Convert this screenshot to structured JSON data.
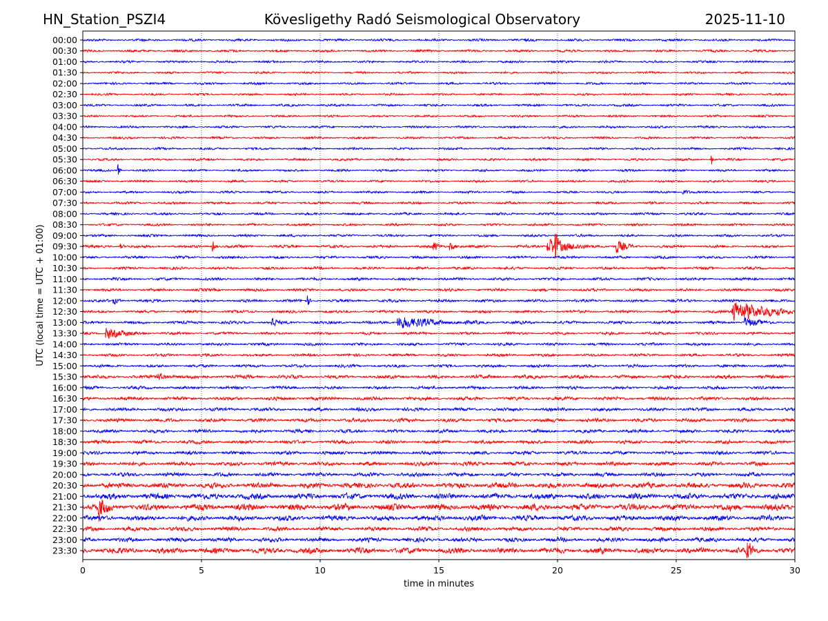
{
  "chart_data": {
    "type": "line",
    "title_left": "HN_Station_PSZI4",
    "title_center": "Kövesligethy Radó Seismological Observatory",
    "title_right": "2025-11-10",
    "xlabel": "time in minutes",
    "ylabel": "UTC (local time = UTC + 01:00)",
    "xlim": [
      0,
      30
    ],
    "xticks": [
      "0",
      "5",
      "10",
      "15",
      "20",
      "25",
      "30"
    ],
    "grid": "vertical dotted at 5-minute ticks",
    "trace_colors": [
      "#0000ff",
      "#ff0000"
    ],
    "traces": [
      "00:00",
      "00:30",
      "01:00",
      "01:30",
      "02:00",
      "02:30",
      "03:00",
      "03:30",
      "04:00",
      "04:30",
      "05:00",
      "05:30",
      "06:00",
      "06:30",
      "07:00",
      "07:30",
      "08:00",
      "08:30",
      "09:00",
      "09:30",
      "10:00",
      "10:30",
      "11:00",
      "11:30",
      "12:00",
      "12:30",
      "13:00",
      "13:30",
      "14:00",
      "14:30",
      "15:00",
      "15:30",
      "16:00",
      "16:30",
      "17:00",
      "17:30",
      "18:00",
      "18:30",
      "19:00",
      "19:30",
      "20:00",
      "20:30",
      "21:00",
      "21:30",
      "22:00",
      "22:30",
      "23:00",
      "23:30"
    ],
    "noise_level": [
      1.6,
      1.6,
      1.5,
      1.4,
      1.5,
      1.4,
      1.5,
      1.4,
      1.5,
      1.5,
      1.5,
      1.5,
      1.5,
      1.5,
      1.5,
      1.6,
      1.6,
      1.6,
      1.6,
      1.8,
      1.7,
      1.7,
      1.8,
      1.8,
      1.8,
      1.8,
      1.9,
      1.8,
      1.8,
      1.8,
      1.9,
      2.3,
      2.0,
      2.3,
      2.2,
      2.4,
      2.2,
      2.3,
      2.3,
      2.6,
      2.5,
      3.6,
      3.8,
      4.2,
      3.4,
      2.8,
      2.8,
      3.8
    ],
    "events": [
      {
        "trace": "05:30",
        "minute": 26.5,
        "amplitude": 8,
        "duration": 0.1
      },
      {
        "trace": "06:00",
        "minute": 1.5,
        "amplitude": 9,
        "duration": 0.1
      },
      {
        "trace": "07:00",
        "minute": 25.3,
        "amplitude": 3,
        "duration": 0.5
      },
      {
        "trace": "09:30",
        "minute": 1.6,
        "amplitude": 3,
        "duration": 0.2
      },
      {
        "trace": "09:30",
        "minute": 5.5,
        "amplitude": 6,
        "duration": 0.15
      },
      {
        "trace": "09:30",
        "minute": 14.8,
        "amplitude": 6,
        "duration": 0.3
      },
      {
        "trace": "09:30",
        "minute": 15.5,
        "amplitude": 5,
        "duration": 0.4
      },
      {
        "trace": "09:30",
        "minute": 19.6,
        "amplitude": 10,
        "duration": 1.6
      },
      {
        "trace": "09:30",
        "minute": 19.9,
        "amplitude": 20,
        "duration": 0.15
      },
      {
        "trace": "09:30",
        "minute": 22.5,
        "amplitude": 8,
        "duration": 0.6
      },
      {
        "trace": "12:00",
        "minute": 1.3,
        "amplitude": 4,
        "duration": 0.3
      },
      {
        "trace": "12:00",
        "minute": 9.5,
        "amplitude": 6,
        "duration": 0.1
      },
      {
        "trace": "12:30",
        "minute": 27.4,
        "amplitude": 14,
        "duration": 2.5
      },
      {
        "trace": "13:00",
        "minute": 8.0,
        "amplitude": 8,
        "duration": 0.2
      },
      {
        "trace": "13:00",
        "minute": 13.3,
        "amplitude": 8,
        "duration": 2.3
      },
      {
        "trace": "13:00",
        "minute": 27.9,
        "amplitude": 6,
        "duration": 0.8
      },
      {
        "trace": "13:30",
        "minute": 1.0,
        "amplitude": 7,
        "duration": 1.2
      },
      {
        "trace": "15:30",
        "minute": 3.2,
        "amplitude": 4,
        "duration": 0.8
      },
      {
        "trace": "21:30",
        "minute": 0.7,
        "amplitude": 14,
        "duration": 0.4
      },
      {
        "trace": "23:30",
        "minute": 28.0,
        "amplitude": 12,
        "duration": 0.3
      }
    ]
  }
}
